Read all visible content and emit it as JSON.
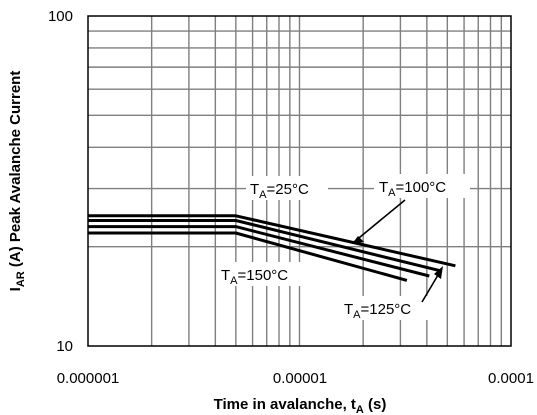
{
  "chart_data": {
    "type": "line",
    "xscale": "log",
    "yscale": "log",
    "xlim": [
      1e-06,
      0.0001
    ],
    "ylim": [
      10,
      100
    ],
    "grid": true,
    "xticks": [
      "0.000001",
      "0.00001",
      "0.0001"
    ],
    "yticks": [
      "10",
      "100"
    ],
    "xlabel": {
      "main": "Time in avalanche, t",
      "sub": "A",
      "unit": " (s)"
    },
    "ylabel": {
      "main": "I",
      "sub": "AR",
      "rest": " (A) Peak Avalanche Current"
    },
    "series": [
      {
        "name": "T_A=25°C",
        "points": [
          [
            1e-06,
            24.8
          ],
          [
            5e-06,
            24.8
          ],
          [
            5.46e-05,
            17.5
          ]
        ]
      },
      {
        "name": "T_A=100°C",
        "points": [
          [
            1e-06,
            24.0
          ],
          [
            5e-06,
            24.0
          ],
          [
            4.64e-05,
            16.9
          ]
        ]
      },
      {
        "name": "T_A=125°C",
        "points": [
          [
            1e-06,
            23.0
          ],
          [
            5e-06,
            23.0
          ],
          [
            4.11e-05,
            16.3
          ]
        ]
      },
      {
        "name": "T_A=150°C",
        "points": [
          [
            1e-06,
            22.0
          ],
          [
            5e-06,
            22.0
          ],
          [
            3.22e-05,
            15.8
          ]
        ]
      }
    ],
    "annotations": [
      {
        "label": "T_A=25°C",
        "main": "T",
        "sub": "A",
        "rest": "=25°C",
        "series": 0
      },
      {
        "label": "T_A=100°C",
        "main": "T",
        "sub": "A",
        "rest": "=100°C",
        "series": 1
      },
      {
        "label": "T_A=150°C",
        "main": "T",
        "sub": "A",
        "rest": "=150°C",
        "series": 3
      },
      {
        "label": "T_A=125°C",
        "main": "T",
        "sub": "A",
        "rest": "=125°C",
        "series": 2
      }
    ],
    "colors": {
      "line": "#000000",
      "grid": "#7f7f7f"
    }
  }
}
